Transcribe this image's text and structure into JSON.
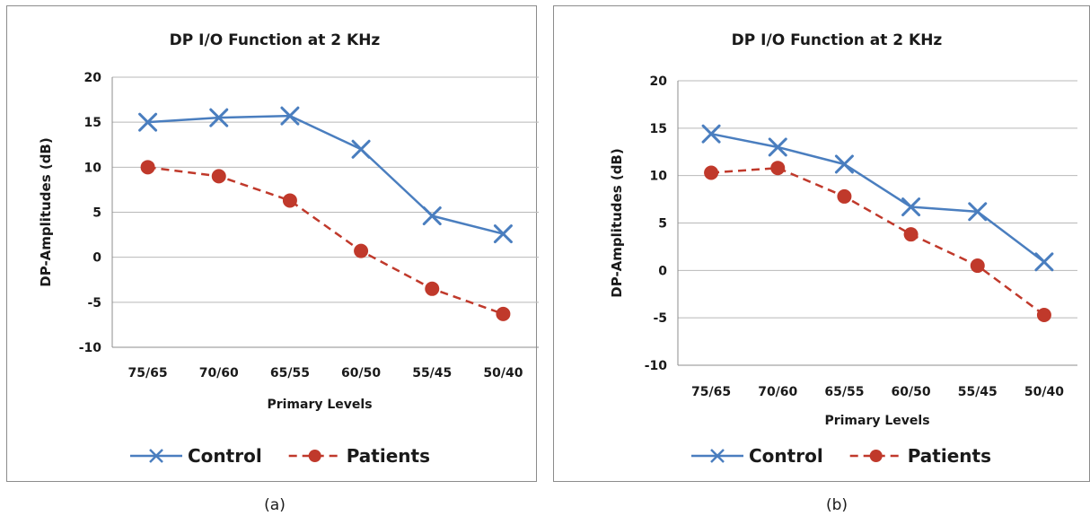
{
  "colors": {
    "control": "#4a7ebf",
    "patients": "#c0392b"
  },
  "chart_data": [
    {
      "type": "line",
      "panel_label": "(a)",
      "title": "DP I/O Function at 2 KHz",
      "xlabel": "Primary Levels",
      "ylabel": "DP-Amplitudes (dB)",
      "categories": [
        "75/65",
        "70/60",
        "65/55",
        "60/50",
        "55/45",
        "50/40"
      ],
      "ylim": [
        -10,
        20
      ],
      "yticks": [
        20,
        15,
        10,
        5,
        0,
        -5,
        -10
      ],
      "grid": true,
      "legend_position": "bottom",
      "series": [
        {
          "name": "Control",
          "marker": "x",
          "line_style": "solid",
          "values": [
            15.0,
            15.5,
            15.7,
            12.0,
            4.6,
            2.6
          ]
        },
        {
          "name": "Patients",
          "marker": "circle",
          "line_style": "dashed",
          "values": [
            10.0,
            9.0,
            6.3,
            0.7,
            -3.5,
            -6.3
          ]
        }
      ]
    },
    {
      "type": "line",
      "panel_label": "(b)",
      "title": "DP I/O Function at 2 KHz",
      "xlabel": "Primary Levels",
      "ylabel": "DP-Amplitudes (dB)",
      "categories": [
        "75/65",
        "70/60",
        "65/55",
        "60/50",
        "55/45",
        "50/40"
      ],
      "ylim": [
        -10,
        20
      ],
      "yticks": [
        20,
        15,
        10,
        5,
        0,
        -5,
        -10
      ],
      "grid": true,
      "legend_position": "bottom",
      "series": [
        {
          "name": "Control",
          "marker": "x",
          "line_style": "solid",
          "values": [
            14.4,
            13.0,
            11.2,
            6.7,
            6.2,
            0.9
          ]
        },
        {
          "name": "Patients",
          "marker": "circle",
          "line_style": "dashed",
          "values": [
            10.3,
            10.8,
            7.8,
            3.8,
            0.5,
            -4.7
          ]
        }
      ]
    }
  ]
}
